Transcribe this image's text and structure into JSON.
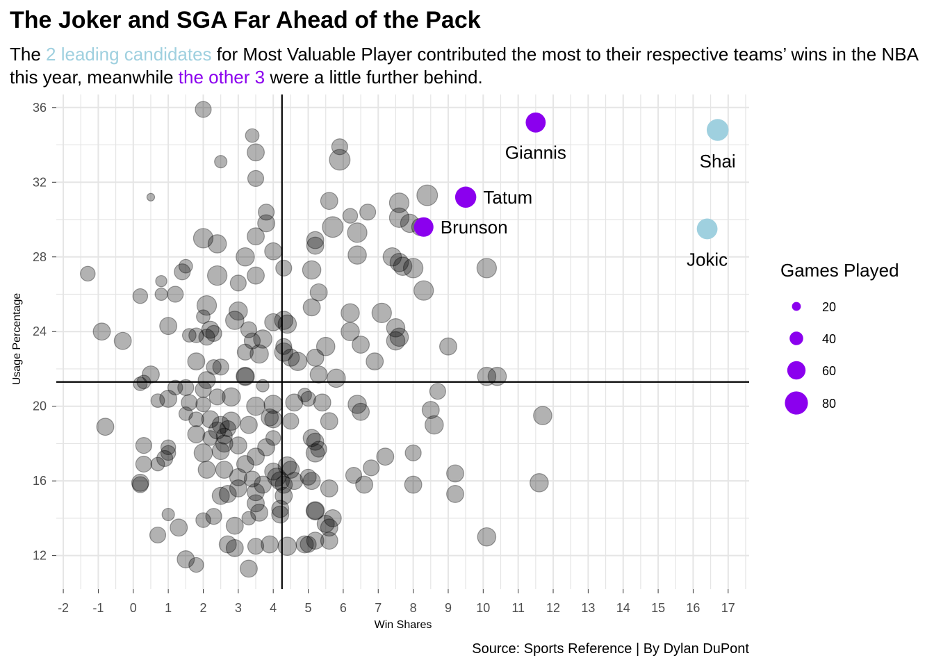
{
  "title": "The Joker and SGA Far Ahead of the Pack",
  "subtitle": {
    "part1": "The ",
    "highlight1": "2 leading candidates",
    "part2": " for Most Valuable Player contributed the most to their respective teams’ wins in the NBA this year, meanwhile ",
    "highlight2": "the other 3",
    "part3": " were a little further behind."
  },
  "caption": "Source: Sports Reference | By Dylan DuPont",
  "colors": {
    "leaders": "#9fd0df",
    "others": "#8b00ee",
    "field": "#000000",
    "grid": "#e5e5e5"
  },
  "chart_data": {
    "type": "scatter",
    "xlabel": "Win Shares",
    "ylabel": "Usage Percentage",
    "xlim": [
      -2.2,
      17.6
    ],
    "ylim": [
      10.2,
      36.7
    ],
    "x_ticks": [
      "-2",
      "-1",
      "0",
      "1",
      "2",
      "3",
      "4",
      "5",
      "6",
      "7",
      "8",
      "9",
      "10",
      "11",
      "12",
      "13",
      "14",
      "15",
      "16",
      "17"
    ],
    "y_ticks": [
      "12",
      "16",
      "20",
      "24",
      "28",
      "32",
      "36"
    ],
    "x_tick_values": [
      -2,
      -1,
      0,
      1,
      2,
      3,
      4,
      5,
      6,
      7,
      8,
      9,
      10,
      11,
      12,
      13,
      14,
      15,
      16,
      17
    ],
    "y_tick_values": [
      12,
      16,
      20,
      24,
      28,
      32,
      36
    ],
    "reference_lines": {
      "vline_x": 4.25,
      "hline_y": 21.3
    },
    "legend": {
      "title": "Games Played",
      "position": "right",
      "entries": [
        {
          "label": "20",
          "value": 20
        },
        {
          "label": "40",
          "value": 40
        },
        {
          "label": "60",
          "value": 60
        },
        {
          "label": "80",
          "value": 80
        }
      ]
    },
    "highlighted": [
      {
        "name": "Shai",
        "x": 16.7,
        "y": 34.8,
        "group": "leaders",
        "games": 75,
        "label_pos": "below"
      },
      {
        "name": "Jokic",
        "x": 16.4,
        "y": 29.5,
        "group": "leaders",
        "games": 70,
        "label_pos": "below"
      },
      {
        "name": "Giannis",
        "x": 11.5,
        "y": 35.2,
        "group": "others",
        "games": 67,
        "label_pos": "below"
      },
      {
        "name": "Tatum",
        "x": 9.5,
        "y": 31.2,
        "group": "others",
        "games": 72,
        "label_pos": "right"
      },
      {
        "name": "Brunson",
        "x": 8.3,
        "y": 29.6,
        "group": "others",
        "games": 65,
        "label_pos": "right"
      }
    ],
    "points": [
      [
        2.0,
        35.9,
        50
      ],
      [
        3.4,
        34.5,
        40
      ],
      [
        3.5,
        33.6,
        55
      ],
      [
        2.5,
        33.1,
        35
      ],
      [
        3.5,
        32.2,
        50
      ],
      [
        0.5,
        31.2,
        15
      ],
      [
        5.9,
        33.9,
        50
      ],
      [
        5.9,
        33.2,
        70
      ],
      [
        5.6,
        31.0,
        55
      ],
      [
        6.2,
        30.2,
        45
      ],
      [
        5.7,
        29.6,
        70
      ],
      [
        6.7,
        30.4,
        50
      ],
      [
        6.4,
        29.3,
        65
      ],
      [
        7.6,
        30.9,
        65
      ],
      [
        8.4,
        31.3,
        70
      ],
      [
        7.6,
        30.1,
        65
      ],
      [
        7.9,
        29.8,
        60
      ],
      [
        8.2,
        29.6,
        55
      ],
      [
        3.8,
        30.4,
        50
      ],
      [
        3.8,
        29.8,
        55
      ],
      [
        3.5,
        29.1,
        55
      ],
      [
        2.0,
        29.0,
        65
      ],
      [
        2.4,
        28.7,
        60
      ],
      [
        5.2,
        28.9,
        55
      ],
      [
        5.2,
        28.6,
        55
      ],
      [
        4.0,
        28.3,
        55
      ],
      [
        3.2,
        28.0,
        60
      ],
      [
        6.4,
        28.1,
        60
      ],
      [
        7.4,
        28.0,
        60
      ],
      [
        7.6,
        27.7,
        60
      ],
      [
        7.7,
        27.5,
        60
      ],
      [
        8.0,
        27.4,
        65
      ],
      [
        10.1,
        27.4,
        65
      ],
      [
        -1.3,
        27.1,
        45
      ],
      [
        1.4,
        27.2,
        50
      ],
      [
        1.5,
        27.5,
        40
      ],
      [
        2.4,
        27.0,
        65
      ],
      [
        3.5,
        27.0,
        55
      ],
      [
        4.3,
        27.4,
        50
      ],
      [
        5.1,
        27.3,
        60
      ],
      [
        3.0,
        26.6,
        50
      ],
      [
        0.8,
        26.7,
        30
      ],
      [
        0.8,
        26.0,
        35
      ],
      [
        1.2,
        26.0,
        50
      ],
      [
        0.2,
        25.9,
        45
      ],
      [
        8.3,
        26.2,
        65
      ],
      [
        5.3,
        26.1,
        55
      ],
      [
        2.1,
        25.4,
        65
      ],
      [
        3.0,
        25.1,
        60
      ],
      [
        1.0,
        24.3,
        55
      ],
      [
        2.0,
        24.8,
        40
      ],
      [
        2.2,
        24.1,
        55
      ],
      [
        3.3,
        24.1,
        50
      ],
      [
        2.9,
        24.6,
        60
      ],
      [
        4.0,
        24.5,
        55
      ],
      [
        4.3,
        24.6,
        60
      ],
      [
        4.4,
        24.4,
        60
      ],
      [
        5.1,
        25.3,
        55
      ],
      [
        6.2,
        25.0,
        60
      ],
      [
        7.1,
        25.0,
        65
      ],
      [
        7.5,
        24.2,
        60
      ],
      [
        -0.9,
        24.0,
        55
      ],
      [
        -0.3,
        23.5,
        55
      ],
      [
        1.6,
        23.8,
        40
      ],
      [
        1.8,
        23.8,
        45
      ],
      [
        2.1,
        23.7,
        50
      ],
      [
        2.3,
        23.9,
        50
      ],
      [
        3.4,
        23.5,
        50
      ],
      [
        3.7,
        23.6,
        60
      ],
      [
        4.3,
        23.2,
        50
      ],
      [
        5.5,
        23.2,
        60
      ],
      [
        6.2,
        24.0,
        60
      ],
      [
        6.5,
        23.3,
        55
      ],
      [
        7.5,
        23.5,
        60
      ],
      [
        7.6,
        23.7,
        60
      ],
      [
        9.0,
        23.2,
        55
      ],
      [
        3.2,
        22.9,
        50
      ],
      [
        3.6,
        22.8,
        60
      ],
      [
        4.3,
        22.9,
        60
      ],
      [
        4.5,
        22.6,
        55
      ],
      [
        4.7,
        22.4,
        60
      ],
      [
        5.2,
        22.6,
        55
      ],
      [
        6.9,
        22.4,
        55
      ],
      [
        1.8,
        22.4,
        55
      ],
      [
        2.3,
        22.1,
        45
      ],
      [
        2.5,
        22.1,
        50
      ],
      [
        0.5,
        21.7,
        55
      ],
      [
        0.3,
        21.3,
        40
      ],
      [
        0.2,
        21.2,
        40
      ],
      [
        1.2,
        21.0,
        45
      ],
      [
        1.5,
        21.0,
        50
      ],
      [
        2.0,
        20.9,
        50
      ],
      [
        2.1,
        21.4,
        55
      ],
      [
        3.2,
        21.6,
        55
      ],
      [
        3.2,
        21.6,
        60
      ],
      [
        3.7,
        21.1,
        35
      ],
      [
        5.3,
        21.7,
        55
      ],
      [
        5.8,
        21.5,
        60
      ],
      [
        10.1,
        21.6,
        60
      ],
      [
        10.4,
        21.6,
        60
      ],
      [
        8.7,
        20.8,
        50
      ],
      [
        0.7,
        20.3,
        40
      ],
      [
        1.0,
        20.4,
        55
      ],
      [
        1.6,
        20.2,
        50
      ],
      [
        2.0,
        20.1,
        45
      ],
      [
        2.4,
        20.5,
        50
      ],
      [
        2.8,
        20.5,
        60
      ],
      [
        3.5,
        20.0,
        60
      ],
      [
        4.0,
        20.1,
        60
      ],
      [
        4.6,
        20.2,
        55
      ],
      [
        4.9,
        20.6,
        40
      ],
      [
        5.0,
        20.4,
        45
      ],
      [
        5.4,
        20.2,
        55
      ],
      [
        6.4,
        20.1,
        60
      ],
      [
        -0.8,
        18.9,
        55
      ],
      [
        1.5,
        19.6,
        40
      ],
      [
        1.8,
        19.3,
        45
      ],
      [
        2.2,
        19.3,
        55
      ],
      [
        2.5,
        19.0,
        55
      ],
      [
        2.8,
        19.2,
        60
      ],
      [
        3.3,
        19.0,
        55
      ],
      [
        3.9,
        19.4,
        55
      ],
      [
        4.0,
        19.3,
        55
      ],
      [
        4.5,
        19.2,
        50
      ],
      [
        5.6,
        19.2,
        55
      ],
      [
        6.5,
        19.7,
        55
      ],
      [
        8.5,
        19.8,
        55
      ],
      [
        8.6,
        19.0,
        60
      ],
      [
        11.7,
        19.5,
        60
      ],
      [
        2.4,
        18.7,
        55
      ],
      [
        2.7,
        18.8,
        50
      ],
      [
        2.6,
        18.4,
        50
      ],
      [
        4.0,
        18.3,
        45
      ],
      [
        5.1,
        18.3,
        55
      ],
      [
        5.2,
        18.1,
        55
      ],
      [
        5.3,
        17.7,
        50
      ],
      [
        5.2,
        17.5,
        60
      ],
      [
        1.8,
        18.5,
        55
      ],
      [
        2.2,
        18.3,
        45
      ],
      [
        2.6,
        18.0,
        55
      ],
      [
        0.3,
        17.9,
        50
      ],
      [
        1.0,
        17.8,
        45
      ],
      [
        1.0,
        17.5,
        45
      ],
      [
        3.0,
        17.9,
        55
      ],
      [
        3.8,
        17.8,
        55
      ],
      [
        2.0,
        17.5,
        60
      ],
      [
        2.5,
        17.6,
        55
      ],
      [
        2.1,
        16.6,
        55
      ],
      [
        2.6,
        16.6,
        55
      ],
      [
        3.2,
        16.9,
        55
      ],
      [
        3.5,
        17.3,
        55
      ],
      [
        4.4,
        16.8,
        60
      ],
      [
        4.5,
        16.6,
        55
      ],
      [
        6.3,
        16.3,
        50
      ],
      [
        6.8,
        16.7,
        50
      ],
      [
        7.2,
        17.3,
        55
      ],
      [
        8.0,
        17.5,
        50
      ],
      [
        0.3,
        16.9,
        50
      ],
      [
        0.7,
        16.9,
        40
      ],
      [
        0.9,
        17.2,
        50
      ],
      [
        4.0,
        16.5,
        55
      ],
      [
        4.1,
        16.2,
        60
      ],
      [
        4.2,
        16.0,
        60
      ],
      [
        4.3,
        15.8,
        55
      ],
      [
        4.6,
        16.0,
        55
      ],
      [
        5.0,
        16.2,
        50
      ],
      [
        5.1,
        16.0,
        55
      ],
      [
        3.4,
        16.1,
        50
      ],
      [
        3.7,
        15.8,
        55
      ],
      [
        0.2,
        15.9,
        55
      ],
      [
        0.2,
        15.8,
        50
      ],
      [
        9.2,
        16.4,
        55
      ],
      [
        11.6,
        15.9,
        60
      ],
      [
        3.0,
        16.2,
        55
      ],
      [
        3.0,
        15.6,
        55
      ],
      [
        3.5,
        15.4,
        55
      ],
      [
        2.5,
        15.2,
        55
      ],
      [
        2.7,
        15.3,
        55
      ],
      [
        4.3,
        15.2,
        55
      ],
      [
        5.6,
        15.6,
        55
      ],
      [
        6.6,
        15.8,
        55
      ],
      [
        8.0,
        15.8,
        55
      ],
      [
        9.2,
        15.3,
        55
      ],
      [
        3.5,
        14.8,
        55
      ],
      [
        4.2,
        14.5,
        55
      ],
      [
        5.2,
        14.4,
        60
      ],
      [
        5.2,
        14.4,
        55
      ],
      [
        3.3,
        14.0,
        40
      ],
      [
        5.7,
        14.0,
        55
      ],
      [
        5.5,
        13.7,
        55
      ],
      [
        5.6,
        13.5,
        55
      ],
      [
        3.6,
        14.3,
        55
      ],
      [
        1.0,
        14.2,
        35
      ],
      [
        2.0,
        13.9,
        45
      ],
      [
        2.3,
        14.1,
        50
      ],
      [
        1.3,
        13.5,
        55
      ],
      [
        2.9,
        13.6,
        55
      ],
      [
        4.2,
        14.2,
        55
      ],
      [
        0.7,
        13.1,
        50
      ],
      [
        2.7,
        12.6,
        55
      ],
      [
        2.9,
        12.4,
        55
      ],
      [
        3.5,
        12.5,
        50
      ],
      [
        3.9,
        12.6,
        55
      ],
      [
        4.4,
        12.5,
        60
      ],
      [
        4.9,
        12.6,
        55
      ],
      [
        5.2,
        12.8,
        55
      ],
      [
        5.6,
        12.8,
        55
      ],
      [
        10.1,
        13.0,
        60
      ],
      [
        1.5,
        11.8,
        55
      ],
      [
        1.8,
        11.5,
        45
      ],
      [
        3.3,
        11.3,
        55
      ],
      [
        5.0,
        12.6,
        50
      ]
    ]
  }
}
